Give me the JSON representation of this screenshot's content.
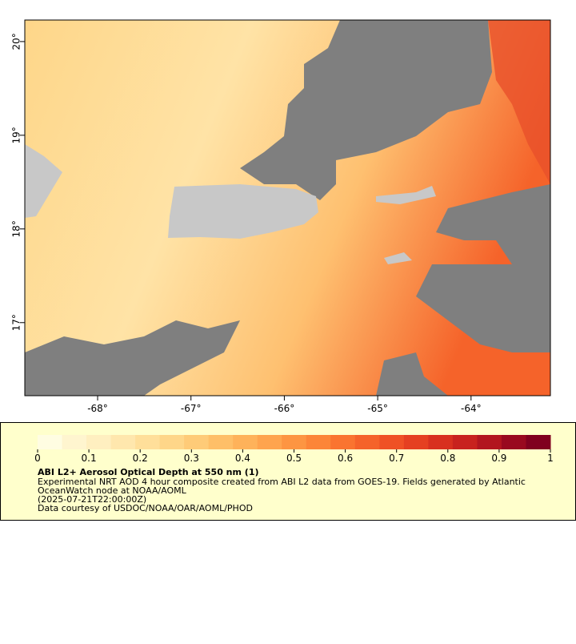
{
  "map": {
    "xlim": [
      -68.78,
      -63.15
    ],
    "ylim": [
      16.22,
      20.23
    ],
    "xticks": [
      {
        "value": -68,
        "label": "-68°"
      },
      {
        "value": -67,
        "label": "-67°"
      },
      {
        "value": -66,
        "label": "-66°"
      },
      {
        "value": -65,
        "label": "-65°"
      },
      {
        "value": -64,
        "label": "-64°"
      }
    ],
    "yticks": [
      {
        "value": 17,
        "label": "17°"
      },
      {
        "value": 18,
        "label": "18°"
      },
      {
        "value": 19,
        "label": "19°"
      },
      {
        "value": 20,
        "label": "20°"
      }
    ]
  },
  "colorbar": {
    "range": [
      0,
      1
    ],
    "ticks": [
      0,
      0.1,
      0.2,
      0.3,
      0.4,
      0.5,
      0.6,
      0.7,
      0.8,
      0.9,
      1
    ],
    "colors": [
      "#fffde2",
      "#fff5cf",
      "#ffefc0",
      "#ffe7ad",
      "#ffdf9a",
      "#fed689",
      "#fecb78",
      "#febf68",
      "#feb25a",
      "#fea44e",
      "#fd9542",
      "#fc8538",
      "#fa7430",
      "#f5632a",
      "#ef5125",
      "#e54021",
      "#d8301f",
      "#c8221e",
      "#b2151f",
      "#99091f",
      "#80001f"
    ]
  },
  "legend": {
    "title": "ABI L2+ Aerosol Optical Depth at 550 nm (1)",
    "lines": [
      "Experimental NRT AOD 4 hour composite created from ABI L2 data from GOES-19. Fields generated by Atlantic",
      "OceanWatch node at NOAA/AOML",
      "(2025-07-21T22:00:00Z)",
      "Data courtesy of USDOC/NOAA/OAR/AOML/PHOD"
    ]
  }
}
